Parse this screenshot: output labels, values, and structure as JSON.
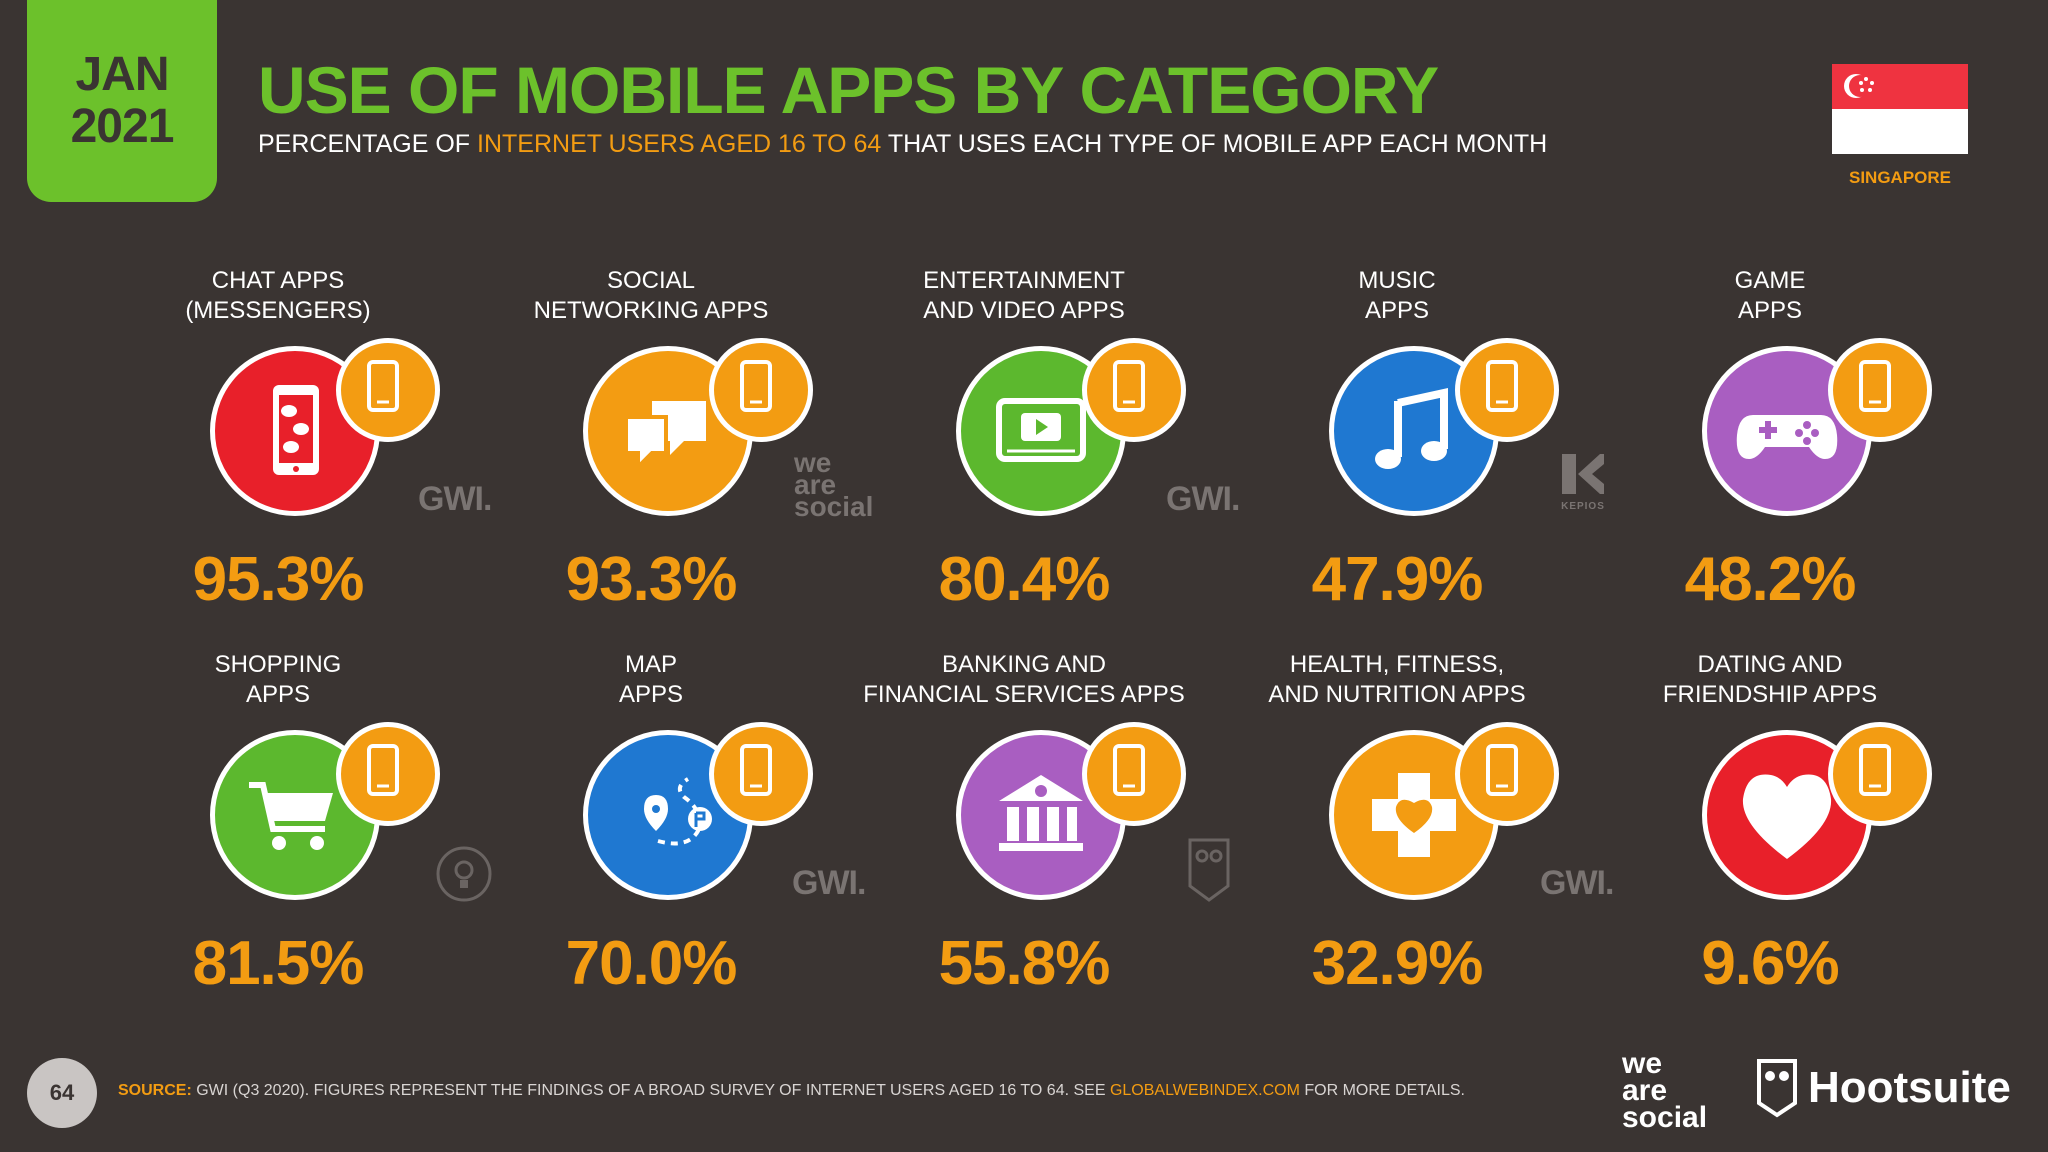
{
  "header": {
    "month": "JAN",
    "year": "2021",
    "title": "USE OF MOBILE APPS BY CATEGORY",
    "subtitle_pre": "PERCENTAGE OF ",
    "subtitle_hl": "INTERNET USERS AGED 16 TO 64",
    "subtitle_post": " THAT USES EACH TYPE OF MOBILE APP EACH MONTH",
    "country": "SINGAPORE"
  },
  "categories": [
    {
      "line1": "CHAT APPS",
      "line2": "(MESSENGERS)",
      "value": "95.3%",
      "color": "#e8202a",
      "icon": "chat-phone-icon"
    },
    {
      "line1": "SOCIAL",
      "line2": "NETWORKING APPS",
      "value": "93.3%",
      "color": "#f39c12",
      "icon": "speech-bubbles-icon"
    },
    {
      "line1": "ENTERTAINMENT",
      "line2": "AND VIDEO APPS",
      "value": "80.4%",
      "color": "#5cb82e",
      "icon": "video-player-icon"
    },
    {
      "line1": "MUSIC",
      "line2": "APPS",
      "value": "47.9%",
      "color": "#1f78d1",
      "icon": "music-note-icon"
    },
    {
      "line1": "GAME",
      "line2": "APPS",
      "value": "48.2%",
      "color": "#a95ec1",
      "icon": "gamepad-icon"
    },
    {
      "line1": "SHOPPING",
      "line2": "APPS",
      "value": "81.5%",
      "color": "#5cb82e",
      "icon": "shopping-cart-icon"
    },
    {
      "line1": "MAP",
      "line2": "APPS",
      "value": "70.0%",
      "color": "#1f78d1",
      "icon": "map-route-icon"
    },
    {
      "line1": "BANKING AND",
      "line2": "FINANCIAL SERVICES APPS",
      "value": "55.8%",
      "color": "#a95ec1",
      "icon": "bank-icon"
    },
    {
      "line1": "HEALTH, FITNESS,",
      "line2": "AND NUTRITION APPS",
      "value": "32.9%",
      "color": "#f39c12",
      "icon": "health-cross-heart-icon"
    },
    {
      "line1": "DATING AND",
      "line2": "FRIENDSHIP APPS",
      "value": "9.6%",
      "color": "#e8202a",
      "icon": "heart-icon"
    }
  ],
  "watermarks": {
    "gwi": "GWI.",
    "we": "we",
    "are": "are",
    "social": "social",
    "kepios": "KEPIOS"
  },
  "footer": {
    "page": "64",
    "source_label": "SOURCE:",
    "source_text": " GWI (Q3 2020). FIGURES REPRESENT THE FINDINGS OF A BROAD SURVEY OF INTERNET USERS AGED 16 TO 64. SEE ",
    "source_link": "GLOBALWEBINDEX.COM",
    "source_tail": " FOR MORE DETAILS.",
    "we": "we",
    "are": "are",
    "social": "social",
    "hootsuite": "Hootsuite"
  }
}
